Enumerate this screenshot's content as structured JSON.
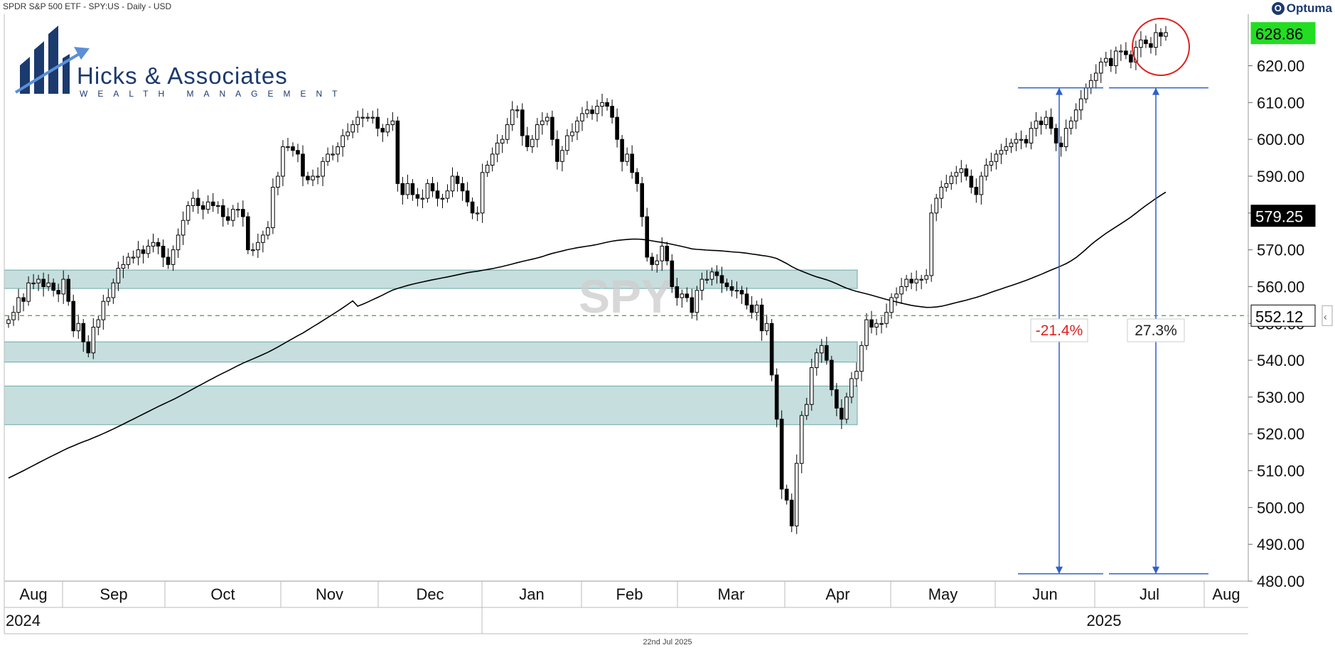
{
  "header": {
    "title": "SPDR S&P 500 ETF - SPY:US - Daily - USD"
  },
  "brand": {
    "optuma": "Optuma",
    "optuma_icon": "optuma-logo-icon"
  },
  "logo": {
    "name": "Hicks & Associates",
    "tagline": "WEALTH MANAGEMENT"
  },
  "watermark": "SPY",
  "footer": {
    "date": "22nd Jul 2025"
  },
  "colors": {
    "zone_fill": "#bcd8d8",
    "zone_stroke": "#6ea8a8",
    "measure_line": "#2e5fc9",
    "support_dash": "#3aa04a",
    "price_highlight": "#22dd22",
    "neg_text": "#e02020",
    "circle": "#e01f1f"
  },
  "chart_data": {
    "type": "candlestick",
    "title": "SPDR S&P 500 ETF - SPY:US - Daily - USD",
    "ylim": [
      480,
      634
    ],
    "y_ticks": [
      480,
      490,
      500,
      510,
      520,
      530,
      540,
      550,
      560,
      570,
      580,
      590,
      600,
      610,
      620
    ],
    "y_tick_labels": [
      "480.00",
      "490.00",
      "500.00",
      "510.00",
      "520.00",
      "530.00",
      "540.00",
      "550.00",
      "560.00",
      "570.00",
      "580.00",
      "590.00",
      "600.00",
      "610.00",
      "620.00"
    ],
    "x_months": [
      "Aug",
      "Sep",
      "Oct",
      "Nov",
      "Dec",
      "Jan",
      "Feb",
      "Mar",
      "Apr",
      "May",
      "Jun",
      "Jul",
      "Aug"
    ],
    "x_years": [
      "2024",
      "2025"
    ],
    "price_labels": {
      "last": "628.86",
      "ma": "579.25",
      "support": "552.12"
    },
    "support_level": 552.12,
    "zones": [
      [
        559.5,
        564.5
      ],
      [
        539.5,
        545
      ],
      [
        522.5,
        533
      ]
    ],
    "measure": {
      "decline": {
        "label": "-21.4%",
        "from": 614,
        "to": 482
      },
      "rally": {
        "label": "27.3%",
        "from": 482,
        "to": 614
      }
    },
    "closes": [
      551,
      553,
      557,
      556,
      561,
      561,
      562,
      560,
      561,
      559,
      558,
      562,
      556,
      548,
      550,
      545,
      542,
      549,
      551,
      556,
      557,
      561,
      565,
      566,
      568,
      568,
      570,
      569,
      571,
      572,
      571,
      568,
      566,
      570,
      574,
      578,
      582,
      584,
      582,
      581,
      583,
      582,
      582,
      579,
      578,
      581,
      581,
      579,
      570,
      570,
      572,
      574,
      576,
      587,
      590,
      598,
      598,
      597,
      596,
      590,
      589,
      590,
      590,
      594,
      596,
      596,
      598,
      601,
      602,
      604,
      606,
      606,
      606,
      606,
      603,
      602,
      604,
      605,
      588,
      585,
      588,
      585,
      584,
      584,
      588,
      586,
      584,
      584,
      586,
      590,
      588,
      586,
      583,
      580,
      580,
      591,
      593,
      596,
      599,
      600,
      604,
      608,
      608,
      601,
      598,
      600,
      604,
      605,
      606,
      600,
      594,
      597,
      601,
      602,
      605,
      607,
      608,
      607,
      609,
      610,
      609,
      606,
      600,
      594,
      596,
      591,
      588,
      579,
      568,
      566,
      567,
      571,
      567,
      560,
      557,
      558,
      557,
      553,
      559,
      562,
      562,
      564,
      563,
      561,
      560,
      559,
      559,
      558,
      555,
      553,
      555,
      548,
      550,
      536,
      524,
      505,
      502,
      495,
      512,
      525,
      528,
      538,
      542,
      544,
      540,
      532,
      527,
      524,
      530,
      535,
      537,
      544,
      551,
      549,
      550,
      550,
      553,
      557,
      558,
      560,
      562,
      561,
      562,
      562,
      563,
      580,
      584,
      587,
      588,
      590,
      591,
      592,
      590,
      587,
      585,
      590,
      593,
      594,
      596,
      597,
      598,
      599,
      600,
      600,
      599,
      603,
      605,
      604,
      606,
      603,
      599,
      598,
      603,
      605,
      608,
      611,
      614,
      616,
      618,
      621,
      622,
      620,
      624,
      624,
      623,
      621,
      625,
      627,
      626,
      625,
      629,
      628,
      629
    ]
  }
}
